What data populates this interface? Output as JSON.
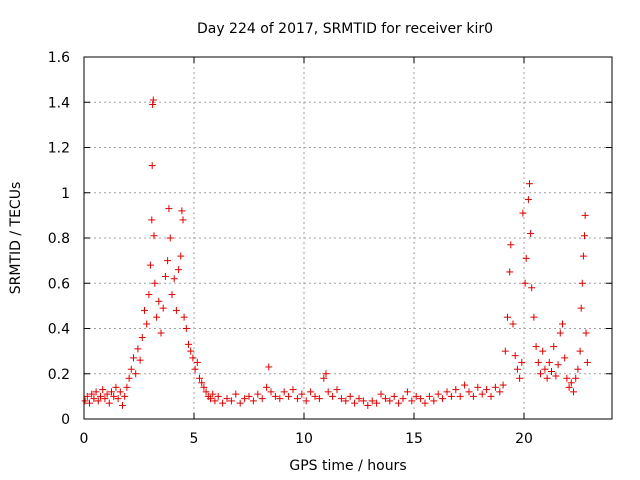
{
  "chart_data": {
    "type": "scatter",
    "title": "Day 224 of 2017, SRMTID for receiver kir0",
    "xlabel": "GPS time / hours",
    "ylabel": "SRMTID / TECUs",
    "xlim": [
      0,
      24
    ],
    "ylim": [
      0,
      1.6
    ],
    "xticks": [
      0,
      5,
      10,
      15,
      20
    ],
    "xtick_labels": [
      "0",
      "5",
      "10",
      "15",
      "20"
    ],
    "yticks": [
      0,
      0.2,
      0.4,
      0.6,
      0.8,
      1.0,
      1.2,
      1.4,
      1.6
    ],
    "ytick_labels": [
      "0",
      "0.2",
      "0.4",
      "0.6",
      "0.8",
      "1",
      "1.2",
      "1.4",
      "1.6"
    ],
    "grid": true,
    "marker": "+",
    "color": "#e00000",
    "series": [
      {
        "name": "SRMTID",
        "points": [
          [
            0.05,
            0.08
          ],
          [
            0.15,
            0.1
          ],
          [
            0.25,
            0.07
          ],
          [
            0.35,
            0.11
          ],
          [
            0.45,
            0.09
          ],
          [
            0.55,
            0.12
          ],
          [
            0.65,
            0.08
          ],
          [
            0.75,
            0.1
          ],
          [
            0.85,
            0.13
          ],
          [
            0.95,
            0.09
          ],
          [
            1.05,
            0.11
          ],
          [
            1.15,
            0.07
          ],
          [
            1.25,
            0.12
          ],
          [
            1.35,
            0.1
          ],
          [
            1.45,
            0.14
          ],
          [
            1.55,
            0.09
          ],
          [
            1.65,
            0.12
          ],
          [
            1.75,
            0.06
          ],
          [
            1.85,
            0.1
          ],
          [
            1.95,
            0.14
          ],
          [
            2.05,
            0.18
          ],
          [
            2.15,
            0.22
          ],
          [
            2.25,
            0.27
          ],
          [
            2.35,
            0.2
          ],
          [
            2.45,
            0.31
          ],
          [
            2.55,
            0.26
          ],
          [
            2.65,
            0.36
          ],
          [
            2.75,
            0.48
          ],
          [
            2.85,
            0.42
          ],
          [
            2.95,
            0.55
          ],
          [
            3.02,
            0.68
          ],
          [
            3.08,
            0.88
          ],
          [
            3.1,
            1.12
          ],
          [
            3.12,
            1.39
          ],
          [
            3.15,
            1.41
          ],
          [
            3.18,
            0.81
          ],
          [
            3.22,
            0.6
          ],
          [
            3.3,
            0.45
          ],
          [
            3.4,
            0.52
          ],
          [
            3.5,
            0.38
          ],
          [
            3.6,
            0.49
          ],
          [
            3.7,
            0.63
          ],
          [
            3.8,
            0.7
          ],
          [
            3.86,
            0.93
          ],
          [
            3.92,
            0.8
          ],
          [
            4.0,
            0.55
          ],
          [
            4.1,
            0.62
          ],
          [
            4.2,
            0.48
          ],
          [
            4.3,
            0.66
          ],
          [
            4.4,
            0.72
          ],
          [
            4.45,
            0.92
          ],
          [
            4.5,
            0.88
          ],
          [
            4.55,
            0.45
          ],
          [
            4.65,
            0.4
          ],
          [
            4.75,
            0.33
          ],
          [
            4.85,
            0.3
          ],
          [
            4.95,
            0.27
          ],
          [
            5.05,
            0.22
          ],
          [
            5.15,
            0.25
          ],
          [
            5.25,
            0.18
          ],
          [
            5.35,
            0.16
          ],
          [
            5.45,
            0.14
          ],
          [
            5.55,
            0.12
          ],
          [
            5.65,
            0.1
          ],
          [
            5.75,
            0.09
          ],
          [
            5.85,
            0.11
          ],
          [
            5.95,
            0.08
          ],
          [
            6.1,
            0.1
          ],
          [
            6.3,
            0.07
          ],
          [
            6.5,
            0.09
          ],
          [
            6.7,
            0.08
          ],
          [
            6.9,
            0.11
          ],
          [
            7.1,
            0.07
          ],
          [
            7.3,
            0.09
          ],
          [
            7.5,
            0.1
          ],
          [
            7.7,
            0.08
          ],
          [
            7.9,
            0.11
          ],
          [
            8.1,
            0.09
          ],
          [
            8.3,
            0.14
          ],
          [
            8.4,
            0.23
          ],
          [
            8.5,
            0.12
          ],
          [
            8.7,
            0.1
          ],
          [
            8.9,
            0.09
          ],
          [
            9.1,
            0.12
          ],
          [
            9.3,
            0.1
          ],
          [
            9.5,
            0.13
          ],
          [
            9.7,
            0.09
          ],
          [
            9.9,
            0.11
          ],
          [
            10.1,
            0.08
          ],
          [
            10.3,
            0.12
          ],
          [
            10.5,
            0.1
          ],
          [
            10.7,
            0.09
          ],
          [
            10.9,
            0.18
          ],
          [
            11.0,
            0.2
          ],
          [
            11.1,
            0.12
          ],
          [
            11.3,
            0.1
          ],
          [
            11.5,
            0.13
          ],
          [
            11.7,
            0.09
          ],
          [
            11.9,
            0.08
          ],
          [
            12.1,
            0.1
          ],
          [
            12.3,
            0.07
          ],
          [
            12.5,
            0.09
          ],
          [
            12.7,
            0.08
          ],
          [
            12.9,
            0.06
          ],
          [
            13.1,
            0.08
          ],
          [
            13.3,
            0.07
          ],
          [
            13.5,
            0.11
          ],
          [
            13.7,
            0.09
          ],
          [
            13.9,
            0.08
          ],
          [
            14.1,
            0.1
          ],
          [
            14.3,
            0.07
          ],
          [
            14.5,
            0.09
          ],
          [
            14.7,
            0.12
          ],
          [
            14.9,
            0.08
          ],
          [
            15.1,
            0.1
          ],
          [
            15.3,
            0.09
          ],
          [
            15.5,
            0.07
          ],
          [
            15.7,
            0.1
          ],
          [
            15.9,
            0.08
          ],
          [
            16.1,
            0.11
          ],
          [
            16.3,
            0.09
          ],
          [
            16.5,
            0.12
          ],
          [
            16.7,
            0.1
          ],
          [
            16.9,
            0.13
          ],
          [
            17.1,
            0.1
          ],
          [
            17.3,
            0.15
          ],
          [
            17.5,
            0.12
          ],
          [
            17.7,
            0.1
          ],
          [
            17.9,
            0.14
          ],
          [
            18.1,
            0.11
          ],
          [
            18.3,
            0.13
          ],
          [
            18.5,
            0.1
          ],
          [
            18.7,
            0.14
          ],
          [
            18.9,
            0.12
          ],
          [
            19.05,
            0.15
          ],
          [
            19.15,
            0.3
          ],
          [
            19.25,
            0.45
          ],
          [
            19.35,
            0.65
          ],
          [
            19.4,
            0.77
          ],
          [
            19.5,
            0.42
          ],
          [
            19.6,
            0.28
          ],
          [
            19.7,
            0.22
          ],
          [
            19.8,
            0.18
          ],
          [
            19.9,
            0.25
          ],
          [
            19.95,
            0.91
          ],
          [
            20.05,
            0.6
          ],
          [
            20.1,
            0.71
          ],
          [
            20.2,
            0.97
          ],
          [
            20.25,
            1.04
          ],
          [
            20.3,
            0.82
          ],
          [
            20.35,
            0.58
          ],
          [
            20.45,
            0.45
          ],
          [
            20.55,
            0.32
          ],
          [
            20.65,
            0.25
          ],
          [
            20.75,
            0.2
          ],
          [
            20.85,
            0.3
          ],
          [
            20.95,
            0.22
          ],
          [
            21.05,
            0.18
          ],
          [
            21.15,
            0.25
          ],
          [
            21.25,
            0.21
          ],
          [
            21.35,
            0.32
          ],
          [
            21.45,
            0.19
          ],
          [
            21.55,
            0.24
          ],
          [
            21.65,
            0.38
          ],
          [
            21.75,
            0.42
          ],
          [
            21.85,
            0.27
          ],
          [
            21.95,
            0.18
          ],
          [
            22.05,
            0.14
          ],
          [
            22.15,
            0.16
          ],
          [
            22.25,
            0.12
          ],
          [
            22.35,
            0.18
          ],
          [
            22.45,
            0.22
          ],
          [
            22.55,
            0.3
          ],
          [
            22.6,
            0.49
          ],
          [
            22.65,
            0.6
          ],
          [
            22.7,
            0.72
          ],
          [
            22.75,
            0.81
          ],
          [
            22.78,
            0.9
          ],
          [
            22.82,
            0.38
          ],
          [
            22.88,
            0.25
          ]
        ]
      }
    ]
  }
}
